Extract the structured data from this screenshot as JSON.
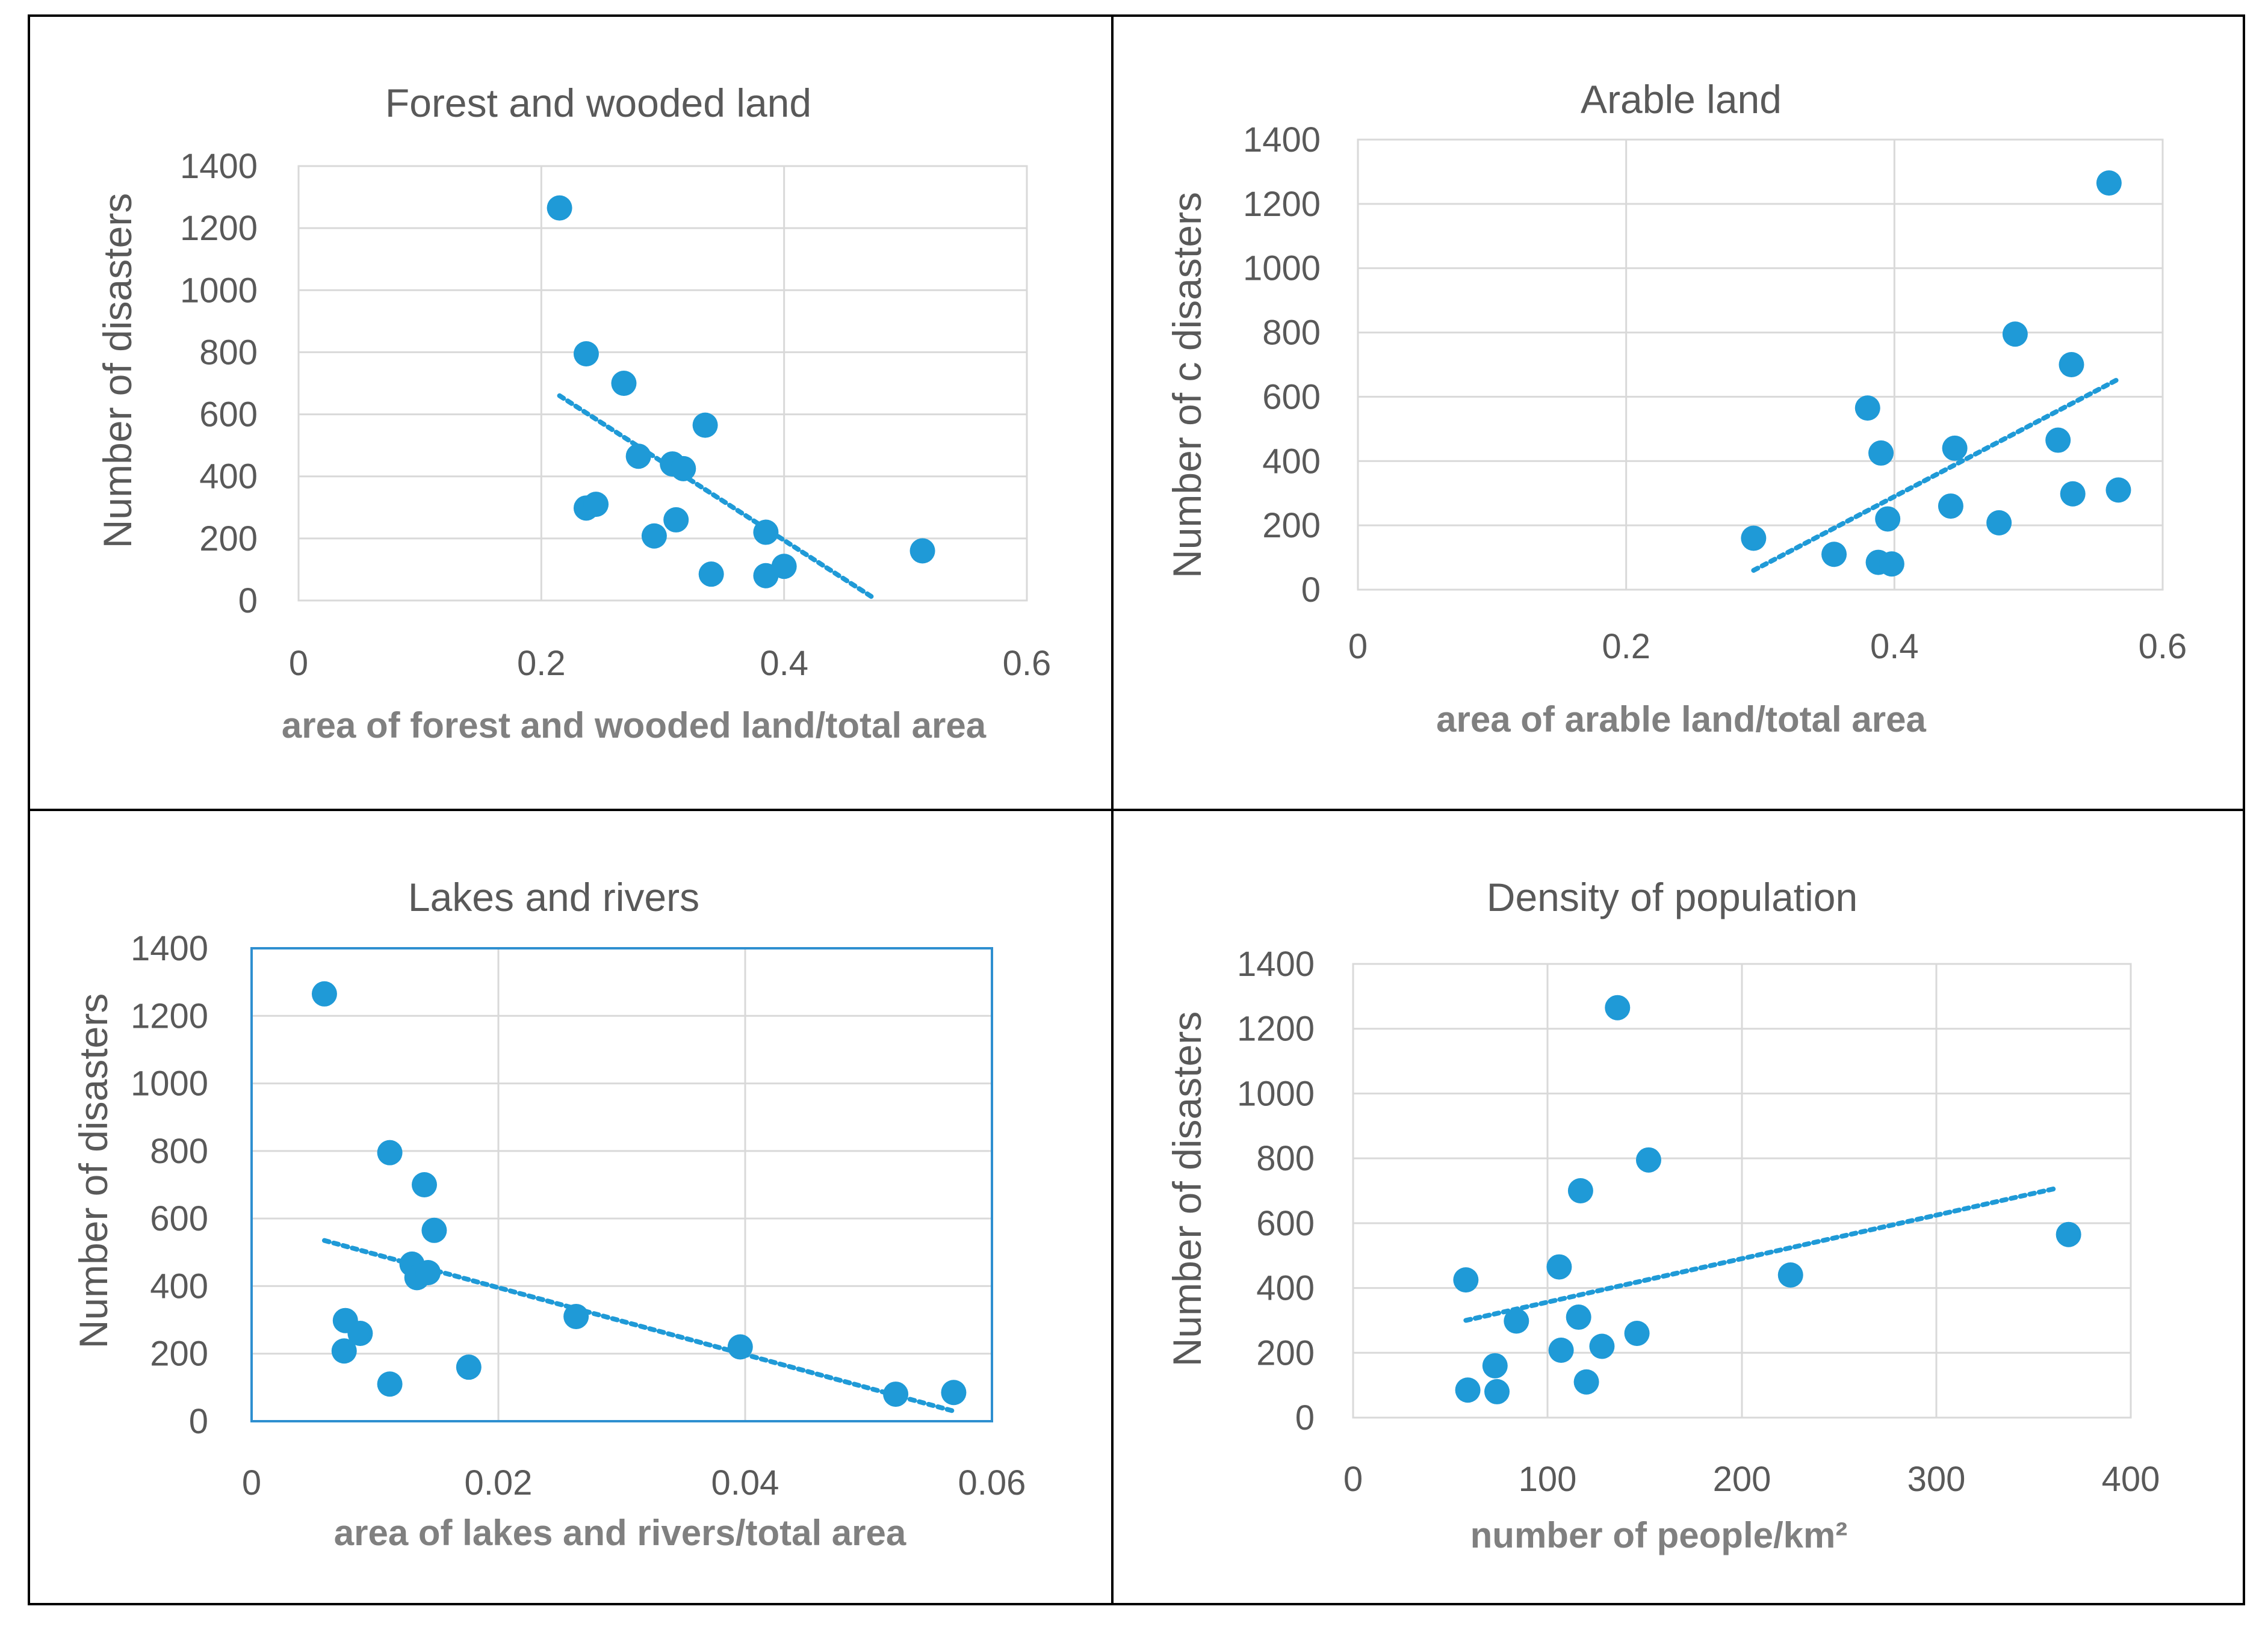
{
  "chart_data": [
    {
      "type": "scatter",
      "title": "Forest and wooded land",
      "xlabel": "area of forest and wooded land/total area",
      "ylabel": "Number of disasters",
      "xlim": [
        0,
        0.6
      ],
      "ylim": [
        0,
        1400
      ],
      "xticks": [
        "0",
        "0.2",
        "0.4",
        "0.6"
      ],
      "yticks": [
        "0",
        "200",
        "400",
        "600",
        "800",
        "1000",
        "1200",
        "1400"
      ],
      "x": [
        0.215,
        0.237,
        0.268,
        0.335,
        0.28,
        0.308,
        0.317,
        0.237,
        0.245,
        0.293,
        0.311,
        0.385,
        0.34,
        0.385,
        0.4,
        0.514
      ],
      "y": [
        1265,
        795,
        700,
        565,
        465,
        440,
        425,
        298,
        310,
        208,
        260,
        220,
        85,
        80,
        110,
        160
      ],
      "trendline": {
        "type": "linear",
        "x": [
          0.215,
          0.475
        ],
        "y": [
          660,
          5
        ]
      },
      "grid": true,
      "legend": "none"
    },
    {
      "type": "scatter",
      "title": "Arable land",
      "xlabel": "area of arable land/total area",
      "ylabel": "Number of c disasters",
      "xlim": [
        0,
        0.6
      ],
      "ylim": [
        0,
        1400
      ],
      "xticks": [
        "0",
        "0.2",
        "0.4",
        "0.6"
      ],
      "yticks": [
        "0",
        "200",
        "400",
        "600",
        "800",
        "1000",
        "1200",
        "1400"
      ],
      "x": [
        0.56,
        0.49,
        0.532,
        0.38,
        0.522,
        0.39,
        0.445,
        0.395,
        0.442,
        0.478,
        0.533,
        0.567,
        0.295,
        0.355,
        0.388,
        0.398
      ],
      "y": [
        1265,
        795,
        700,
        565,
        465,
        425,
        440,
        220,
        260,
        208,
        298,
        310,
        160,
        110,
        85,
        80
      ],
      "trendline": {
        "type": "linear",
        "x": [
          0.295,
          0.567
        ],
        "y": [
          60,
          655
        ]
      },
      "grid": true,
      "legend": "none"
    },
    {
      "type": "scatter",
      "title": "Lakes and rivers",
      "xlabel": "area of lakes and rivers/total area",
      "ylabel": "Number of disasters",
      "xlim": [
        0,
        0.06
      ],
      "ylim": [
        0,
        1400
      ],
      "xticks": [
        "0",
        "0.02",
        "0.04",
        "0.06"
      ],
      "yticks": [
        "0",
        "200",
        "400",
        "600",
        "800",
        "1000",
        "1200",
        "1400"
      ],
      "x": [
        0.0059,
        0.0112,
        0.014,
        0.0148,
        0.013,
        0.0134,
        0.0143,
        0.0076,
        0.0088,
        0.0075,
        0.0263,
        0.0396,
        0.0176,
        0.0112,
        0.0522,
        0.0569
      ],
      "y": [
        1265,
        795,
        700,
        565,
        465,
        425,
        440,
        298,
        260,
        208,
        310,
        220,
        160,
        110,
        80,
        85
      ],
      "trendline": {
        "type": "linear",
        "x": [
          0.0059,
          0.0569
        ],
        "y": [
          535,
          30
        ]
      },
      "grid": true,
      "legend": "none"
    },
    {
      "type": "scatter",
      "title": "Density of population",
      "xlabel": "number of people/km²",
      "ylabel": "Number of  disasters",
      "xlim": [
        0,
        400
      ],
      "ylim": [
        0,
        1400
      ],
      "xticks": [
        "0",
        "100",
        "200",
        "300",
        "400"
      ],
      "yticks": [
        "0",
        "200",
        "400",
        "600",
        "800",
        "1000",
        "1200",
        "1400"
      ],
      "x": [
        136,
        152,
        117,
        368,
        106,
        58,
        225,
        84,
        116,
        146,
        128,
        107,
        73,
        120,
        59,
        74
      ],
      "y": [
        1265,
        795,
        700,
        565,
        465,
        425,
        440,
        298,
        310,
        260,
        220,
        208,
        160,
        110,
        85,
        80
      ],
      "trendline": {
        "type": "linear",
        "x": [
          58,
          362
        ],
        "y": [
          300,
          708
        ]
      },
      "grid": true,
      "legend": "none"
    }
  ]
}
